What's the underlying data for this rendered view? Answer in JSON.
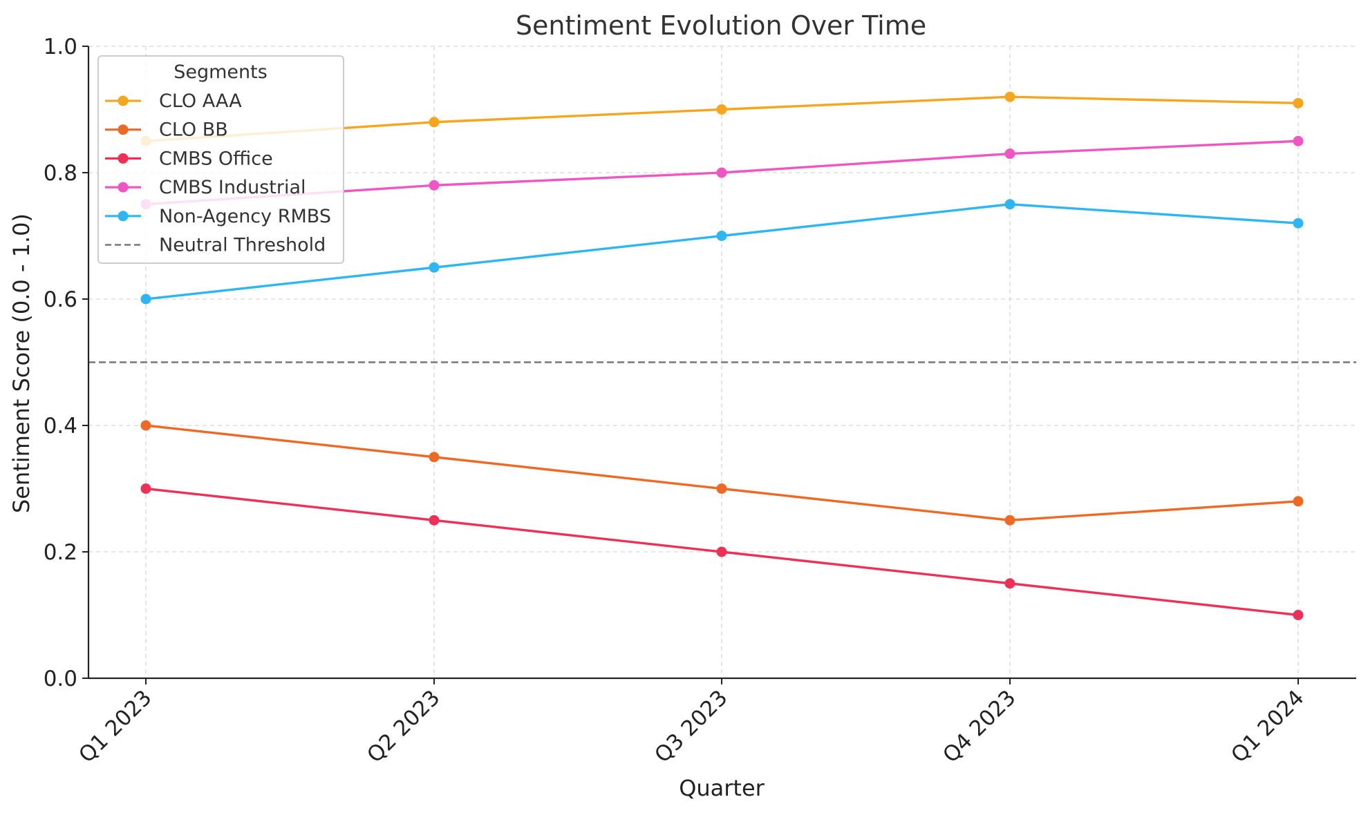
{
  "chart_data": {
    "type": "line",
    "title": "Sentiment Evolution Over Time",
    "xlabel": "Quarter",
    "ylabel": "Sentiment Score (0.0 - 1.0)",
    "categories": [
      "Q1 2023",
      "Q2 2023",
      "Q3 2023",
      "Q4 2023",
      "Q1 2024"
    ],
    "ylim": [
      0.0,
      1.0
    ],
    "yticks": [
      "0.0",
      "0.2",
      "0.4",
      "0.6",
      "0.8",
      "1.0"
    ],
    "grid": true,
    "legend": {
      "title": "Segments",
      "placement": "top-left"
    },
    "series": [
      {
        "name": "CLO AAA",
        "color": "#f5a61c",
        "values": [
          0.85,
          0.88,
          0.9,
          0.92,
          0.91
        ]
      },
      {
        "name": "CLO BB",
        "color": "#ee6a24",
        "values": [
          0.4,
          0.35,
          0.3,
          0.25,
          0.28
        ]
      },
      {
        "name": "CMBS Office",
        "color": "#ee3057",
        "values": [
          0.3,
          0.25,
          0.2,
          0.15,
          0.1
        ]
      },
      {
        "name": "CMBS Industrial",
        "color": "#f155c4",
        "values": [
          0.75,
          0.78,
          0.8,
          0.83,
          0.85
        ]
      },
      {
        "name": "Non-Agency RMBS",
        "color": "#2db7f2",
        "values": [
          0.6,
          0.65,
          0.7,
          0.75,
          0.72
        ]
      }
    ],
    "threshold": {
      "name": "Neutral Threshold",
      "value": 0.5,
      "color": "#777777",
      "style": "dashed"
    }
  }
}
